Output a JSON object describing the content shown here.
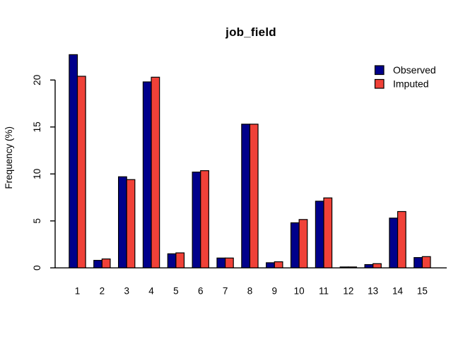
{
  "chart_data": {
    "type": "bar",
    "title": "job_field",
    "xlabel": "",
    "ylabel": "Frequency (%)",
    "categories": [
      "1",
      "2",
      "3",
      "4",
      "5",
      "6",
      "7",
      "8",
      "9",
      "10",
      "11",
      "12",
      "13",
      "14",
      "15"
    ],
    "series": [
      {
        "name": "Observed",
        "color": "#00008B",
        "values": [
          22.7,
          0.8,
          9.7,
          19.8,
          1.5,
          10.2,
          1.05,
          15.3,
          0.55,
          4.8,
          7.1,
          0.1,
          0.35,
          5.3,
          1.1
        ]
      },
      {
        "name": "Imputed",
        "color": "#F04138",
        "values": [
          20.4,
          0.95,
          9.4,
          20.3,
          1.6,
          10.35,
          1.05,
          15.3,
          0.65,
          5.15,
          7.45,
          0.1,
          0.45,
          6.0,
          1.2
        ]
      }
    ],
    "yticks": [
      0,
      5,
      10,
      15,
      20
    ],
    "ylim": [
      0,
      20
    ],
    "grid": false,
    "legend_position": "top-right",
    "bar_border_color": "#000000",
    "axis_color": "#000000",
    "background": "#FFFFFF"
  }
}
